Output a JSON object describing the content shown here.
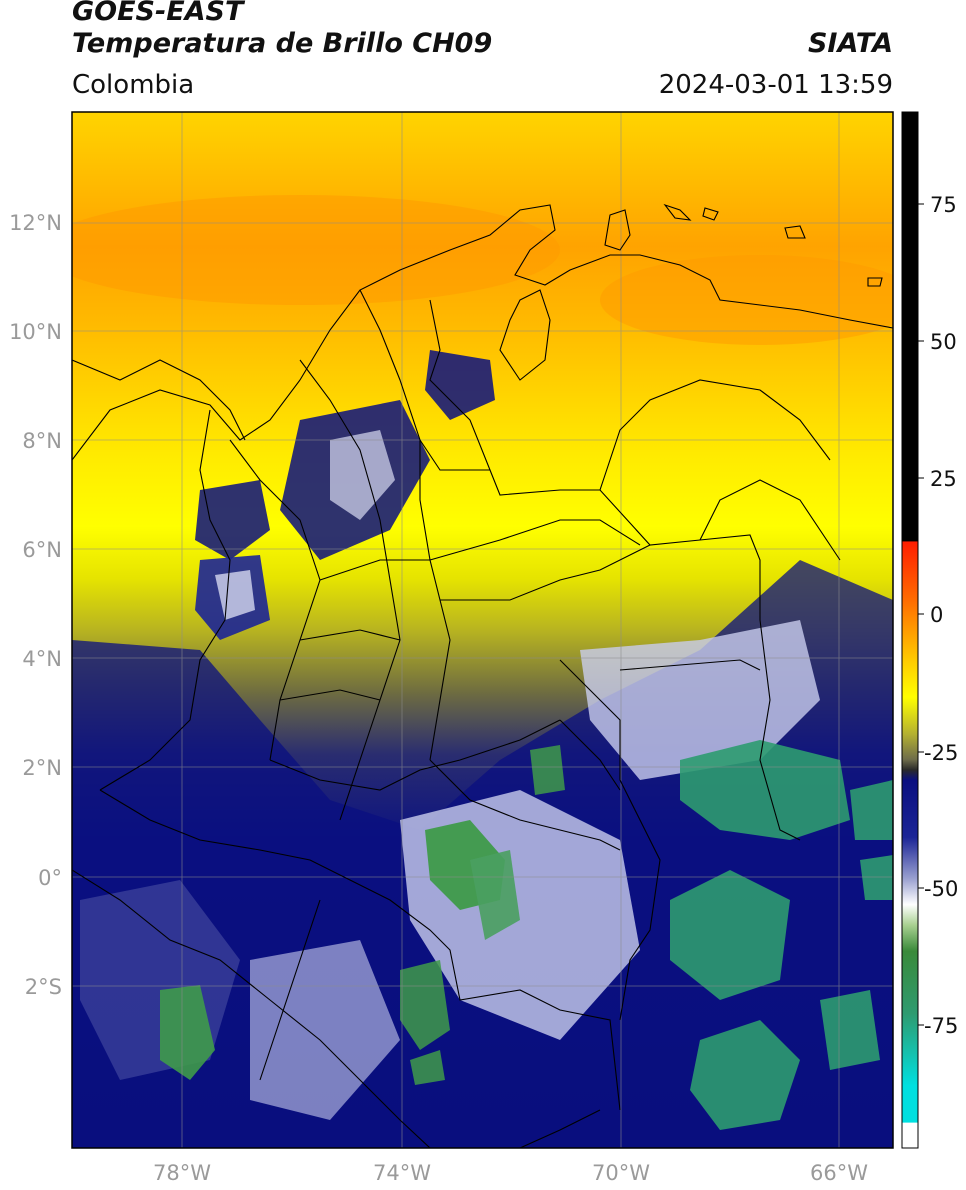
{
  "header": {
    "satellite": "GOES-EAST",
    "product": "Temperatura de Brillo CH09",
    "region": "Colombia",
    "agency": "SIATA",
    "datetime": "2024-03-01 13:59"
  },
  "map": {
    "lon_range": [
      -80,
      -65
    ],
    "lat_range": [
      -5,
      14
    ],
    "lon_ticks": [
      "78°W",
      "74°W",
      "70°W",
      "66°W"
    ],
    "lat_ticks": [
      "12°N",
      "10°N",
      "8°N",
      "6°N",
      "4°N",
      "2°N",
      "0°",
      "2°S"
    ],
    "grid": true
  },
  "colorbar": {
    "ticks": [
      "75",
      "50",
      "25",
      "0",
      "-25",
      "-50",
      "-75"
    ],
    "range": [
      -95,
      90
    ],
    "colors": {
      "black": "#000000",
      "red": "#ff1e00",
      "orange": "#ff9a00",
      "yellow": "#ffff00",
      "olive": "#8a8a30",
      "navy": "#0a0f80",
      "white": "#ffffff",
      "green": "#2e9b55",
      "cyan": "#00e0e0"
    }
  }
}
